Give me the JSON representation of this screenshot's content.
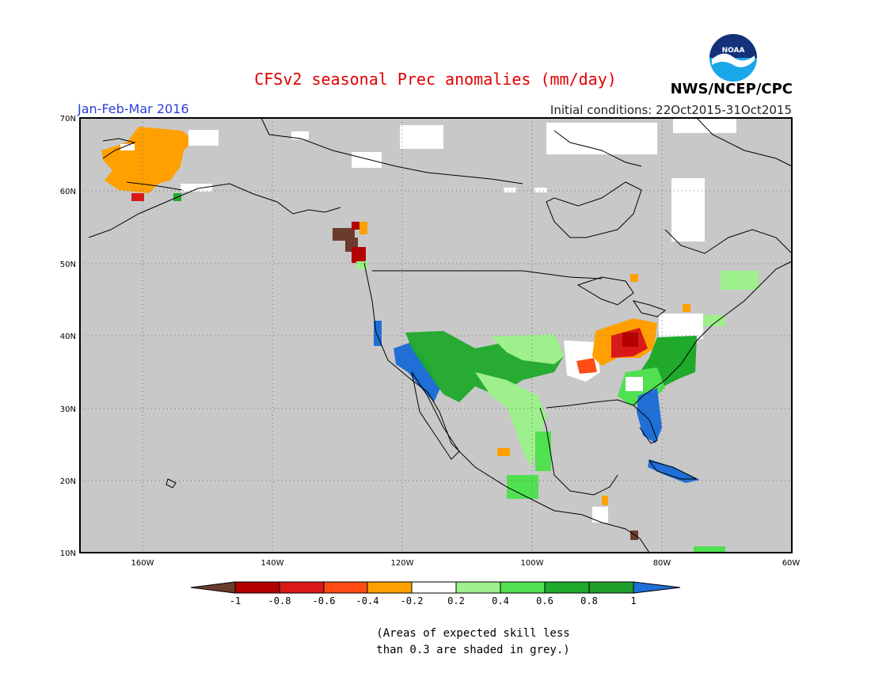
{
  "header": {
    "title": "CFSv2 seasonal Prec anomalies (mm/day)",
    "period": "Jan-Feb-Mar 2016",
    "initial_conditions": "Initial conditions: 22Oct2015-31Oct2015",
    "agency": "NWS/NCEP/CPC",
    "logo_text": "NOAA"
  },
  "map": {
    "lat_labels": [
      "70N",
      "60N",
      "50N",
      "40N",
      "30N",
      "20N",
      "10N"
    ],
    "lon_labels": [
      "160W",
      "140W",
      "120W",
      "100W",
      "80W",
      "60W"
    ],
    "background_color": "#c8c8c8",
    "coast_color": "#000000"
  },
  "legend": {
    "tick_labels": [
      "-1",
      "-0.8",
      "-0.6",
      "-0.4",
      "-0.2",
      "0.2",
      "0.4",
      "0.6",
      "0.8",
      "1"
    ],
    "colors": [
      "#6b3c2c",
      "#b30000",
      "#d91818",
      "#ff4c14",
      "#ffa000",
      "#ffffff",
      "#9ef08c",
      "#50e050",
      "#1faa2b",
      "#1f9e2a",
      "#1f6fd6"
    ]
  },
  "footnote": {
    "line1": "(Areas of expected skill less",
    "line2": "than 0.3 are shaded in grey.)"
  }
}
